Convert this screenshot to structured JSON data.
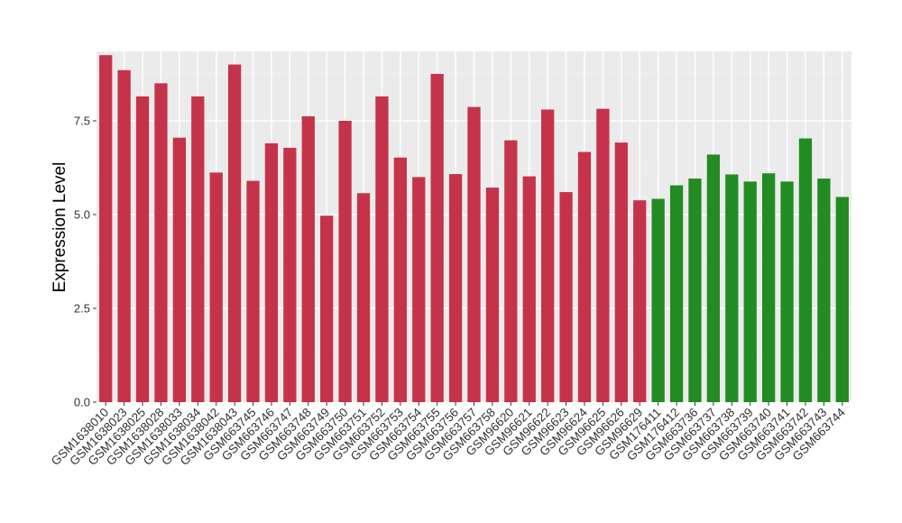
{
  "chart_data": {
    "type": "bar",
    "title": "",
    "xlabel": "",
    "ylabel": "Expression Level",
    "ylim": [
      0,
      9.35
    ],
    "yticks": [
      0.0,
      2.5,
      5.0,
      7.5
    ],
    "ytick_labels": [
      "0.0",
      "2.5",
      "5.0",
      "7.5"
    ],
    "grid": true,
    "legend": "none",
    "categories": [
      "GSM1638010",
      "GSM1638023",
      "GSM1638025",
      "GSM1638028",
      "GSM1638033",
      "GSM1638034",
      "GSM1638042",
      "GSM1638043",
      "GSM663745",
      "GSM663746",
      "GSM663747",
      "GSM663748",
      "GSM663749",
      "GSM663750",
      "GSM663751",
      "GSM663752",
      "GSM663753",
      "GSM663754",
      "GSM663755",
      "GSM663756",
      "GSM663757",
      "GSM663758",
      "GSM96620",
      "GSM96621",
      "GSM96622",
      "GSM96623",
      "GSM96624",
      "GSM96625",
      "GSM96626",
      "GSM96629",
      "GSM176411",
      "GSM176412",
      "GSM663736",
      "GSM663737",
      "GSM663738",
      "GSM663739",
      "GSM663740",
      "GSM663741",
      "GSM663742",
      "GSM663743",
      "GSM663744"
    ],
    "values": [
      9.25,
      8.85,
      8.15,
      8.5,
      7.05,
      8.15,
      6.12,
      9.0,
      5.9,
      6.9,
      6.78,
      7.62,
      4.97,
      7.5,
      5.57,
      8.15,
      6.52,
      6.0,
      8.75,
      6.08,
      7.87,
      5.72,
      6.98,
      6.02,
      7.8,
      5.6,
      6.67,
      7.82,
      6.92,
      5.38,
      5.42,
      5.78,
      5.96,
      6.6,
      6.07,
      5.88,
      6.1,
      5.88,
      7.03,
      5.96,
      5.47
    ],
    "groups": [
      1,
      1,
      1,
      1,
      1,
      1,
      1,
      1,
      1,
      1,
      1,
      1,
      1,
      1,
      1,
      1,
      1,
      1,
      1,
      1,
      1,
      1,
      1,
      1,
      1,
      1,
      1,
      1,
      1,
      1,
      2,
      2,
      2,
      2,
      2,
      2,
      2,
      2,
      2,
      2,
      2
    ],
    "colors": {
      "group1": "#c5334a",
      "group2": "#228b22",
      "panel_background": "#ebebeb",
      "grid_major": "#ffffff",
      "grid_minor": "#f4f4f4"
    }
  }
}
